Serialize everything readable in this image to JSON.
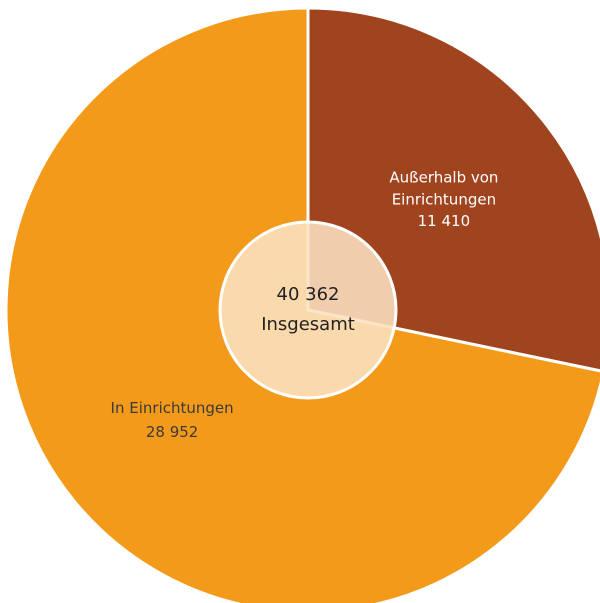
{
  "chart_data": {
    "type": "pie",
    "categories": [
      "Außerhalb von Einrichtungen",
      "In Einrichtungen"
    ],
    "values": [
      11410,
      28952
    ],
    "value_labels": [
      "11 410",
      "28 952"
    ],
    "colors": [
      "#a0431f",
      "#f39a1a"
    ],
    "center_label": {
      "value": 40362,
      "label": "40 362"
    },
    "center_text": "Insgesamt"
  }
}
